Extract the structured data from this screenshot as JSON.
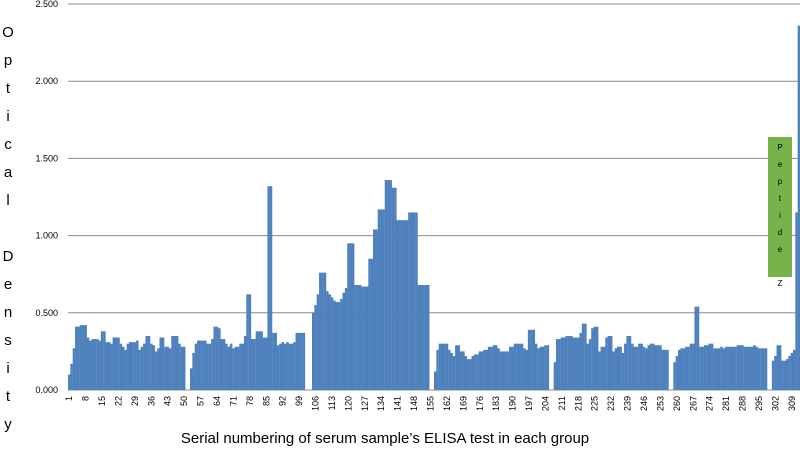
{
  "chart_data": {
    "type": "bar",
    "y_label": "Optical Density",
    "x_label": "Serial numbering  of serum sample’s ELISA test in each group",
    "annotation": "Peptide Z",
    "annotation_color": "#77b24a",
    "color": "#4f81bd",
    "grid": true,
    "ylim": [
      0,
      2.5
    ],
    "yticks": [
      {
        "value": 0,
        "label": "0.000"
      },
      {
        "value": 0.5,
        "label": "0.500"
      },
      {
        "value": 1,
        "label": "1.000"
      },
      {
        "value": 1.5,
        "label": "1.500"
      },
      {
        "value": 2,
        "label": "2.000"
      },
      {
        "value": 2.5,
        "label": "2.500"
      }
    ],
    "categories": [
      1,
      null,
      null,
      null,
      null,
      null,
      null,
      8,
      null,
      null,
      null,
      null,
      null,
      null,
      15,
      null,
      null,
      null,
      null,
      null,
      null,
      22,
      null,
      null,
      null,
      null,
      null,
      null,
      29,
      null,
      null,
      null,
      null,
      null,
      null,
      36,
      null,
      null,
      null,
      null,
      null,
      null,
      43,
      null,
      null,
      null,
      null,
      null,
      null,
      50,
      null,
      null,
      null,
      null,
      null,
      null,
      57,
      null,
      null,
      null,
      null,
      null,
      null,
      64,
      null,
      null,
      null,
      null,
      null,
      null,
      71,
      null,
      null,
      null,
      null,
      null,
      null,
      78,
      null,
      null,
      null,
      null,
      null,
      null,
      85,
      null,
      null,
      null,
      null,
      null,
      null,
      92,
      null,
      null,
      null,
      null,
      null,
      null,
      99,
      null,
      null,
      null,
      null,
      null,
      null,
      106,
      null,
      null,
      null,
      null,
      null,
      null,
      113,
      null,
      null,
      null,
      null,
      null,
      null,
      120,
      null,
      null,
      null,
      null,
      null,
      null,
      127,
      null,
      null,
      null,
      null,
      null,
      null,
      134,
      null,
      null,
      null,
      null,
      null,
      null,
      141,
      null,
      null,
      null,
      null,
      null,
      null,
      148,
      null,
      null,
      null,
      null,
      null,
      null,
      155,
      null,
      null,
      null,
      null,
      null,
      null,
      162,
      null,
      null,
      null,
      null,
      null,
      null,
      169,
      null,
      null,
      null,
      null,
      null,
      null,
      176,
      null,
      null,
      null,
      null,
      null,
      null,
      183,
      null,
      null,
      null,
      null,
      null,
      null,
      190,
      null,
      null,
      null,
      null,
      null,
      null,
      197,
      null,
      null,
      null,
      null,
      null,
      null,
      204,
      null,
      null,
      null,
      null,
      null,
      null,
      211,
      null,
      null,
      null,
      null,
      null,
      null,
      218,
      null,
      null,
      null,
      null,
      null,
      null,
      225,
      null,
      null,
      null,
      null,
      null,
      null,
      232,
      null,
      null,
      null,
      null,
      null,
      null,
      239,
      null,
      null,
      null,
      null,
      null,
      null,
      246,
      null,
      null,
      null,
      null,
      null,
      null,
      253,
      null,
      null,
      null,
      null,
      null,
      null,
      260,
      null,
      null,
      null,
      null,
      null,
      null,
      267,
      null,
      null,
      null,
      null,
      null,
      null,
      274,
      null,
      null,
      null,
      null,
      null,
      null,
      281,
      null,
      null,
      null,
      null,
      null,
      null,
      288,
      null,
      null,
      null,
      null,
      null,
      null,
      295,
      null,
      null,
      null,
      null,
      null,
      null,
      302,
      null,
      null,
      null,
      null,
      null,
      null,
      309,
      null,
      null,
      null
    ],
    "values": [
      0.1,
      0.17,
      0.27,
      0.41,
      0.41,
      0.42,
      0.42,
      0.42,
      0.34,
      0.32,
      0.33,
      0.33,
      0.33,
      0.32,
      0.38,
      0.38,
      0.31,
      0.31,
      0.3,
      0.34,
      0.34,
      0.34,
      0.3,
      0.28,
      0.26,
      0.3,
      0.31,
      0.31,
      0.31,
      0.32,
      0.26,
      0.28,
      0.3,
      0.35,
      0.35,
      0.3,
      0.29,
      0.25,
      0.27,
      0.34,
      0.34,
      0.28,
      0.28,
      0.27,
      0.35,
      0.35,
      0.35,
      0.3,
      0.28,
      0.28,
      null,
      null,
      0.14,
      0.24,
      0.3,
      0.32,
      0.32,
      0.32,
      0.32,
      0.3,
      0.3,
      0.33,
      0.41,
      0.41,
      0.4,
      0.33,
      0.33,
      0.3,
      0.28,
      0.3,
      0.27,
      0.28,
      0.28,
      0.3,
      0.3,
      0.35,
      0.62,
      0.62,
      0.33,
      0.33,
      0.38,
      0.38,
      0.38,
      0.34,
      0.34,
      1.32,
      1.32,
      0.37,
      0.37,
      0.29,
      0.3,
      0.31,
      0.3,
      0.31,
      0.3,
      0.3,
      0.31,
      0.37,
      0.37,
      0.37,
      0.37,
      null,
      null,
      null,
      0.5,
      0.55,
      0.62,
      0.76,
      0.76,
      0.76,
      0.64,
      0.62,
      0.6,
      0.58,
      0.57,
      0.57,
      0.59,
      0.63,
      0.66,
      0.95,
      0.95,
      0.95,
      0.68,
      0.68,
      0.68,
      0.67,
      0.67,
      0.67,
      0.85,
      0.85,
      1.04,
      1.04,
      1.17,
      1.17,
      1.17,
      1.36,
      1.36,
      1.36,
      1.31,
      1.31,
      1.1,
      1.1,
      1.1,
      1.1,
      1.1,
      1.15,
      1.15,
      1.15,
      1.15,
      0.68,
      0.68,
      0.68,
      0.68,
      0.68,
      null,
      null,
      0.12,
      0.26,
      0.3,
      0.3,
      0.3,
      0.3,
      0.26,
      0.24,
      0.22,
      0.29,
      0.29,
      0.25,
      0.25,
      0.22,
      0.2,
      0.2,
      0.22,
      0.23,
      0.23,
      0.25,
      0.25,
      0.26,
      0.26,
      0.28,
      0.28,
      0.29,
      0.29,
      0.27,
      0.25,
      0.25,
      0.25,
      0.25,
      0.28,
      0.28,
      0.3,
      0.3,
      0.3,
      0.3,
      0.27,
      0.26,
      0.39,
      0.39,
      0.39,
      0.3,
      0.27,
      0.28,
      0.28,
      0.29,
      0.29,
      null,
      null,
      0.18,
      0.33,
      0.33,
      0.34,
      0.34,
      0.35,
      0.35,
      0.35,
      0.34,
      0.34,
      0.34,
      0.37,
      0.43,
      0.43,
      0.3,
      0.33,
      0.4,
      0.41,
      0.41,
      0.25,
      0.28,
      0.28,
      0.34,
      0.35,
      0.35,
      0.25,
      0.27,
      0.28,
      0.28,
      0.24,
      0.3,
      0.35,
      0.35,
      0.3,
      0.28,
      0.28,
      0.3,
      0.3,
      0.28,
      0.27,
      0.29,
      0.3,
      0.3,
      0.29,
      0.29,
      0.29,
      0.26,
      0.26,
      0.26,
      null,
      null,
      0.18,
      0.22,
      0.26,
      0.27,
      0.27,
      0.28,
      0.28,
      0.3,
      0.3,
      0.54,
      0.54,
      0.28,
      0.28,
      0.29,
      0.29,
      0.3,
      0.3,
      0.27,
      0.27,
      0.27,
      0.28,
      0.27,
      0.28,
      0.28,
      0.28,
      0.28,
      0.28,
      0.29,
      0.29,
      0.29,
      0.28,
      0.28,
      0.28,
      0.28,
      0.29,
      0.28,
      0.27,
      0.27,
      0.27,
      0.27,
      null,
      null,
      0.19,
      0.22,
      0.29,
      0.29,
      0.19,
      0.19,
      0.2,
      0.22,
      0.24,
      0.26,
      1.15,
      2.36
    ]
  }
}
